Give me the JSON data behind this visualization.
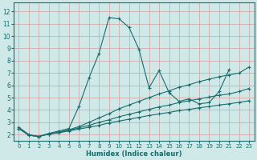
{
  "xlabel": "Humidex (Indice chaleur)",
  "background_color": "#cfe9e9",
  "grid_color": "#b0d4d4",
  "line_color": "#1a6b6b",
  "xlim": [
    -0.5,
    23.5
  ],
  "ylim": [
    1.5,
    12.7
  ],
  "xticks": [
    0,
    1,
    2,
    3,
    4,
    5,
    6,
    7,
    8,
    9,
    10,
    11,
    12,
    13,
    14,
    15,
    16,
    17,
    18,
    19,
    20,
    21,
    22,
    23
  ],
  "yticks": [
    2,
    3,
    4,
    5,
    6,
    7,
    8,
    9,
    10,
    11,
    12
  ],
  "series": [
    {
      "x": [
        0,
        1,
        2,
        3,
        4,
        5,
        6,
        7,
        8,
        9,
        10,
        11,
        12,
        13,
        14,
        15,
        16,
        17,
        18,
        19,
        20,
        21
      ],
      "y": [
        2.6,
        2.0,
        1.85,
        2.1,
        2.3,
        2.5,
        4.3,
        6.6,
        8.6,
        11.5,
        11.4,
        10.7,
        8.9,
        5.8,
        7.2,
        5.4,
        4.7,
        4.9,
        4.5,
        4.6,
        5.5,
        7.3
      ]
    },
    {
      "x": [
        0,
        1,
        2,
        3,
        4,
        5,
        6,
        7,
        8,
        9,
        10,
        11,
        12,
        13,
        14,
        15,
        16,
        17,
        18,
        19,
        20,
        21,
        22,
        23
      ],
      "y": [
        2.5,
        1.95,
        1.85,
        2.05,
        2.2,
        2.4,
        2.65,
        3.0,
        3.35,
        3.7,
        4.1,
        4.4,
        4.7,
        5.0,
        5.3,
        5.55,
        5.85,
        6.05,
        6.3,
        6.5,
        6.7,
        6.85,
        7.0,
        7.5
      ]
    },
    {
      "x": [
        0,
        1,
        2,
        3,
        4,
        5,
        6,
        7,
        8,
        9,
        10,
        11,
        12,
        13,
        14,
        15,
        16,
        17,
        18,
        19,
        20,
        21,
        22,
        23
      ],
      "y": [
        2.5,
        1.95,
        1.85,
        2.05,
        2.2,
        2.35,
        2.55,
        2.75,
        3.0,
        3.2,
        3.45,
        3.65,
        3.85,
        4.05,
        4.25,
        4.4,
        4.6,
        4.75,
        4.9,
        5.05,
        5.2,
        5.3,
        5.5,
        5.75
      ]
    },
    {
      "x": [
        0,
        1,
        2,
        3,
        4,
        5,
        6,
        7,
        8,
        9,
        10,
        11,
        12,
        13,
        14,
        15,
        16,
        17,
        18,
        19,
        20,
        21,
        22,
        23
      ],
      "y": [
        2.5,
        1.95,
        1.85,
        2.05,
        2.15,
        2.3,
        2.45,
        2.6,
        2.75,
        2.95,
        3.1,
        3.25,
        3.4,
        3.55,
        3.68,
        3.8,
        3.95,
        4.05,
        4.18,
        4.28,
        4.4,
        4.5,
        4.62,
        4.75
      ]
    }
  ]
}
